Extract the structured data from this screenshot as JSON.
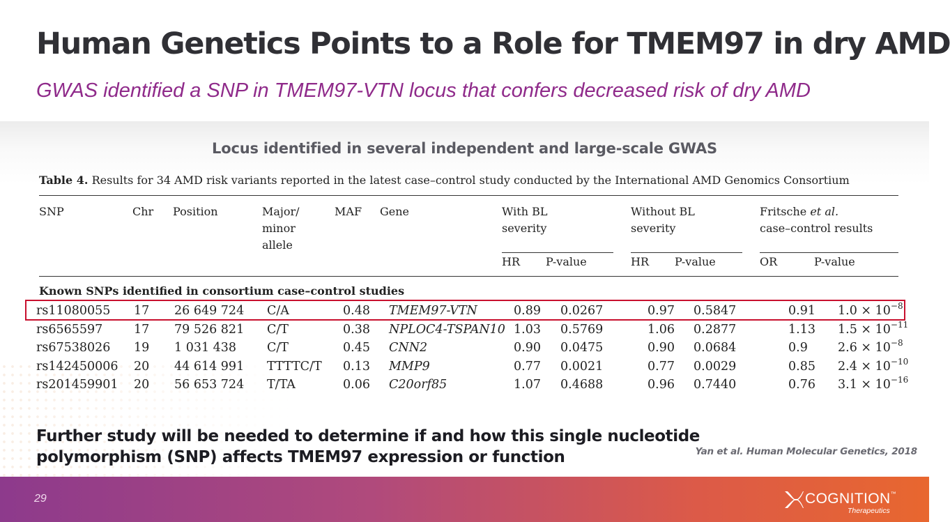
{
  "slide": {
    "title": "Human Genetics Points to a Role for TMEM97 in dry AMD",
    "subtitle": "GWAS identified a SNP in TMEM97-VTN locus that confers decreased risk of dry AMD",
    "section_heading": "Locus identified in several independent and large-scale GWAS",
    "conclusion_line1": "Further study will be needed to determine if and how this single nucleotide",
    "conclusion_line2": "polymorphism (SNP) affects TMEM97 expression or function",
    "citation": "Yan et al. Human Molecular Genetics, 2018",
    "page_number": "29",
    "brand_color": "#8f2a8a",
    "highlight_color": "#c8102e"
  },
  "logo": {
    "wordmark": "COGNITION",
    "trademark": "™",
    "tagline": "Therapeutics",
    "icon": "cognition-x-logo-icon"
  },
  "table": {
    "caption_label": "Table 4.",
    "caption_text": "Results for 34 AMD risk variants reported in the latest case–control study conducted by the International AMD Genomics Consortium",
    "headers": {
      "snp": "SNP",
      "chr": "Chr",
      "position": "Position",
      "allele_1": "Major/",
      "allele_2": "minor",
      "allele_3": "allele",
      "maf": "MAF",
      "gene": "Gene",
      "with_bl_1": "With BL",
      "with_bl_2": "severity",
      "without_bl_1": "Without BL",
      "without_bl_2": "severity",
      "fritsche_1a": "Fritsche ",
      "fritsche_1b": "et al.",
      "fritsche_2": "case–control results",
      "hr": "HR",
      "pvalue": "P-value",
      "or": "OR"
    },
    "group_label": "Known SNPs identified in consortium case–control studies",
    "highlighted_row": 0,
    "rows": [
      {
        "snp": "rs11080055",
        "chr": "17",
        "position": "26 649 724",
        "allele": "C/A",
        "maf": "0.48",
        "gene": "TMEM97-VTN",
        "hr_bl": "0.89",
        "p_bl": "0.0267",
        "hr_nobl": "0.97",
        "p_nobl": "0.5847",
        "or": "0.91",
        "p_mant": "1.0 × 10",
        "p_exp": "−8"
      },
      {
        "snp": "rs6565597",
        "chr": "17",
        "position": "79 526 821",
        "allele": "C/T",
        "maf": "0.38",
        "gene": "NPLOC4-TSPAN10",
        "hr_bl": "1.03",
        "p_bl": "0.5769",
        "hr_nobl": "1.06",
        "p_nobl": "0.2877",
        "or": "1.13",
        "p_mant": "1.5 × 10",
        "p_exp": "−11"
      },
      {
        "snp": "rs67538026",
        "chr": "19",
        "position": "1 031 438",
        "allele": "C/T",
        "maf": "0.45",
        "gene": "CNN2",
        "hr_bl": "0.90",
        "p_bl": "0.0475",
        "hr_nobl": "0.90",
        "p_nobl": "0.0684",
        "or": "0.9",
        "p_mant": "2.6 × 10",
        "p_exp": "−8"
      },
      {
        "snp": "rs142450006",
        "chr": "20",
        "position": "44 614 991",
        "allele": "TTTTC/T",
        "maf": "0.13",
        "gene": "MMP9",
        "hr_bl": "0.77",
        "p_bl": "0.0021",
        "hr_nobl": "0.77",
        "p_nobl": "0.0029",
        "or": "0.85",
        "p_mant": "2.4 × 10",
        "p_exp": "−10"
      },
      {
        "snp": "rs201459901",
        "chr": "20",
        "position": "56 653 724",
        "allele": "T/TA",
        "maf": "0.06",
        "gene": "C20orf85",
        "hr_bl": "1.07",
        "p_bl": "0.4688",
        "hr_nobl": "0.96",
        "p_nobl": "0.7440",
        "or": "0.76",
        "p_mant": "3.1 × 10",
        "p_exp": "−16"
      }
    ]
  }
}
